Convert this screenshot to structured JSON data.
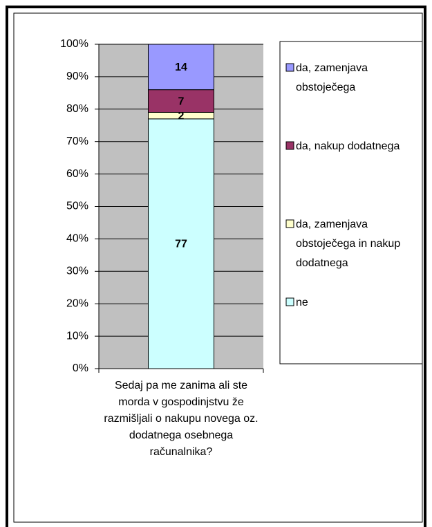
{
  "chart_data": {
    "type": "stacked_bar",
    "categories": [
      "Sedaj pa me zanima ali ste morda v gospodinjstvu že razmišljali o nakupu novega oz. dodatnega osebnega računalnika?"
    ],
    "series": [
      {
        "name": "ne",
        "color": "#ccffff",
        "values": [
          77
        ]
      },
      {
        "name": "da, zamenjava obstoječega in nakup dodatnega",
        "color": "#ffffcc",
        "values": [
          2
        ]
      },
      {
        "name": "da, nakup dodatnega",
        "color": "#993366",
        "values": [
          7
        ]
      },
      {
        "name": "da, zamenjava obstoječega",
        "color": "#9999ff",
        "values": [
          14
        ]
      }
    ],
    "ylim": [
      0,
      100
    ],
    "yticks": [
      {
        "value": 0,
        "label": "0%"
      },
      {
        "value": 10,
        "label": "10%"
      },
      {
        "value": 20,
        "label": "20%"
      },
      {
        "value": 30,
        "label": "30%"
      },
      {
        "value": 40,
        "label": "40%"
      },
      {
        "value": 50,
        "label": "50%"
      },
      {
        "value": 60,
        "label": "60%"
      },
      {
        "value": 70,
        "label": "70%"
      },
      {
        "value": 80,
        "label": "80%"
      },
      {
        "value": 90,
        "label": "90%"
      },
      {
        "value": 100,
        "label": "100%"
      }
    ],
    "grid": true,
    "legend": "right"
  }
}
